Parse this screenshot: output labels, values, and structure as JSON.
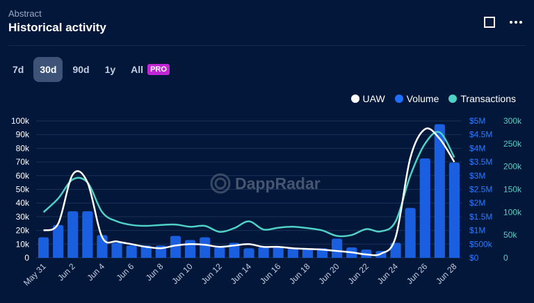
{
  "header": {
    "subtitle": "Abstract",
    "title": "Historical activity"
  },
  "ranges": [
    {
      "label": "7d",
      "active": false
    },
    {
      "label": "30d",
      "active": true
    },
    {
      "label": "90d",
      "active": false
    },
    {
      "label": "1y",
      "active": false
    },
    {
      "label": "All",
      "active": false
    }
  ],
  "pro_badge": "PRO",
  "watermark": "DappRadar",
  "legend": [
    {
      "label": "UAW",
      "color": "#ffffff"
    },
    {
      "label": "Volume",
      "color": "#1f6fff"
    },
    {
      "label": "Transactions",
      "color": "#4fd1c5"
    }
  ],
  "colors": {
    "background": "#03173a",
    "uaw": "#ffffff",
    "volume": "#1a5fe0",
    "transactions": "#4fd1c5"
  },
  "chart_data": {
    "type": "bar",
    "x": [
      "May 31",
      "Jun 1",
      "Jun 2",
      "Jun 3",
      "Jun 4",
      "Jun 5",
      "Jun 6",
      "Jun 7",
      "Jun 8",
      "Jun 9",
      "Jun 10",
      "Jun 11",
      "Jun 12",
      "Jun 13",
      "Jun 14",
      "Jun 15",
      "Jun 16",
      "Jun 17",
      "Jun 18",
      "Jun 19",
      "Jun 20",
      "Jun 21",
      "Jun 22",
      "Jun 23",
      "Jun 24",
      "Jun 25",
      "Jun 26",
      "Jun 27",
      "Jun 28"
    ],
    "xticklabels": [
      "May 31",
      "Jun 2",
      "Jun 4",
      "Jun 6",
      "Jun 8",
      "Jun 10",
      "Jun 12",
      "Jun 14",
      "Jun 16",
      "Jun 18",
      "Jun 20",
      "Jun 22",
      "Jun 24",
      "Jun 26",
      "Jun 28"
    ],
    "series": [
      {
        "name": "UAW",
        "type": "line",
        "axis": "left",
        "values": [
          20000,
          25000,
          61000,
          55000,
          15000,
          12000,
          10000,
          8000,
          7000,
          9000,
          10000,
          9500,
          8000,
          9000,
          10000,
          8000,
          8000,
          7000,
          6500,
          6000,
          5000,
          4000,
          2500,
          3000,
          15000,
          73000,
          94000,
          87000,
          70000
        ]
      },
      {
        "name": "Volume",
        "type": "bar",
        "axis": "right-volume",
        "values": [
          750000,
          1200000,
          1700000,
          1700000,
          830000,
          550000,
          450000,
          450000,
          450000,
          800000,
          650000,
          750000,
          400000,
          550000,
          350000,
          400000,
          400000,
          350000,
          350000,
          350000,
          700000,
          380000,
          300000,
          250000,
          550000,
          1820000,
          3630000,
          4880000,
          3480000
        ]
      },
      {
        "name": "Transactions",
        "type": "line",
        "axis": "right-tx",
        "values": [
          100000,
          130000,
          172000,
          165000,
          100000,
          80000,
          72000,
          70000,
          72000,
          73000,
          68000,
          70000,
          57000,
          65000,
          80000,
          62000,
          66000,
          68000,
          65000,
          60000,
          48000,
          50000,
          63000,
          58000,
          80000,
          180000,
          250000,
          275000,
          220000
        ]
      }
    ],
    "y_left": {
      "ticks": [
        "0",
        "10k",
        "20k",
        "30k",
        "40k",
        "50k",
        "60k",
        "70k",
        "80k",
        "90k",
        "100k"
      ],
      "min": 0,
      "max": 100000
    },
    "y_right_volume": {
      "ticks": [
        "$0",
        "$500k",
        "$1M",
        "$1.5M",
        "$2M",
        "$2.5M",
        "$3M",
        "$3.5M",
        "$4M",
        "$4.5M",
        "$5M"
      ],
      "min": 0,
      "max": 5000000
    },
    "y_right_tx": {
      "ticks": [
        "0",
        "50k",
        "100k",
        "150k",
        "200k",
        "250k",
        "300k"
      ],
      "min": 0,
      "max": 300000
    },
    "grid": true,
    "legend_position": "top-right"
  }
}
